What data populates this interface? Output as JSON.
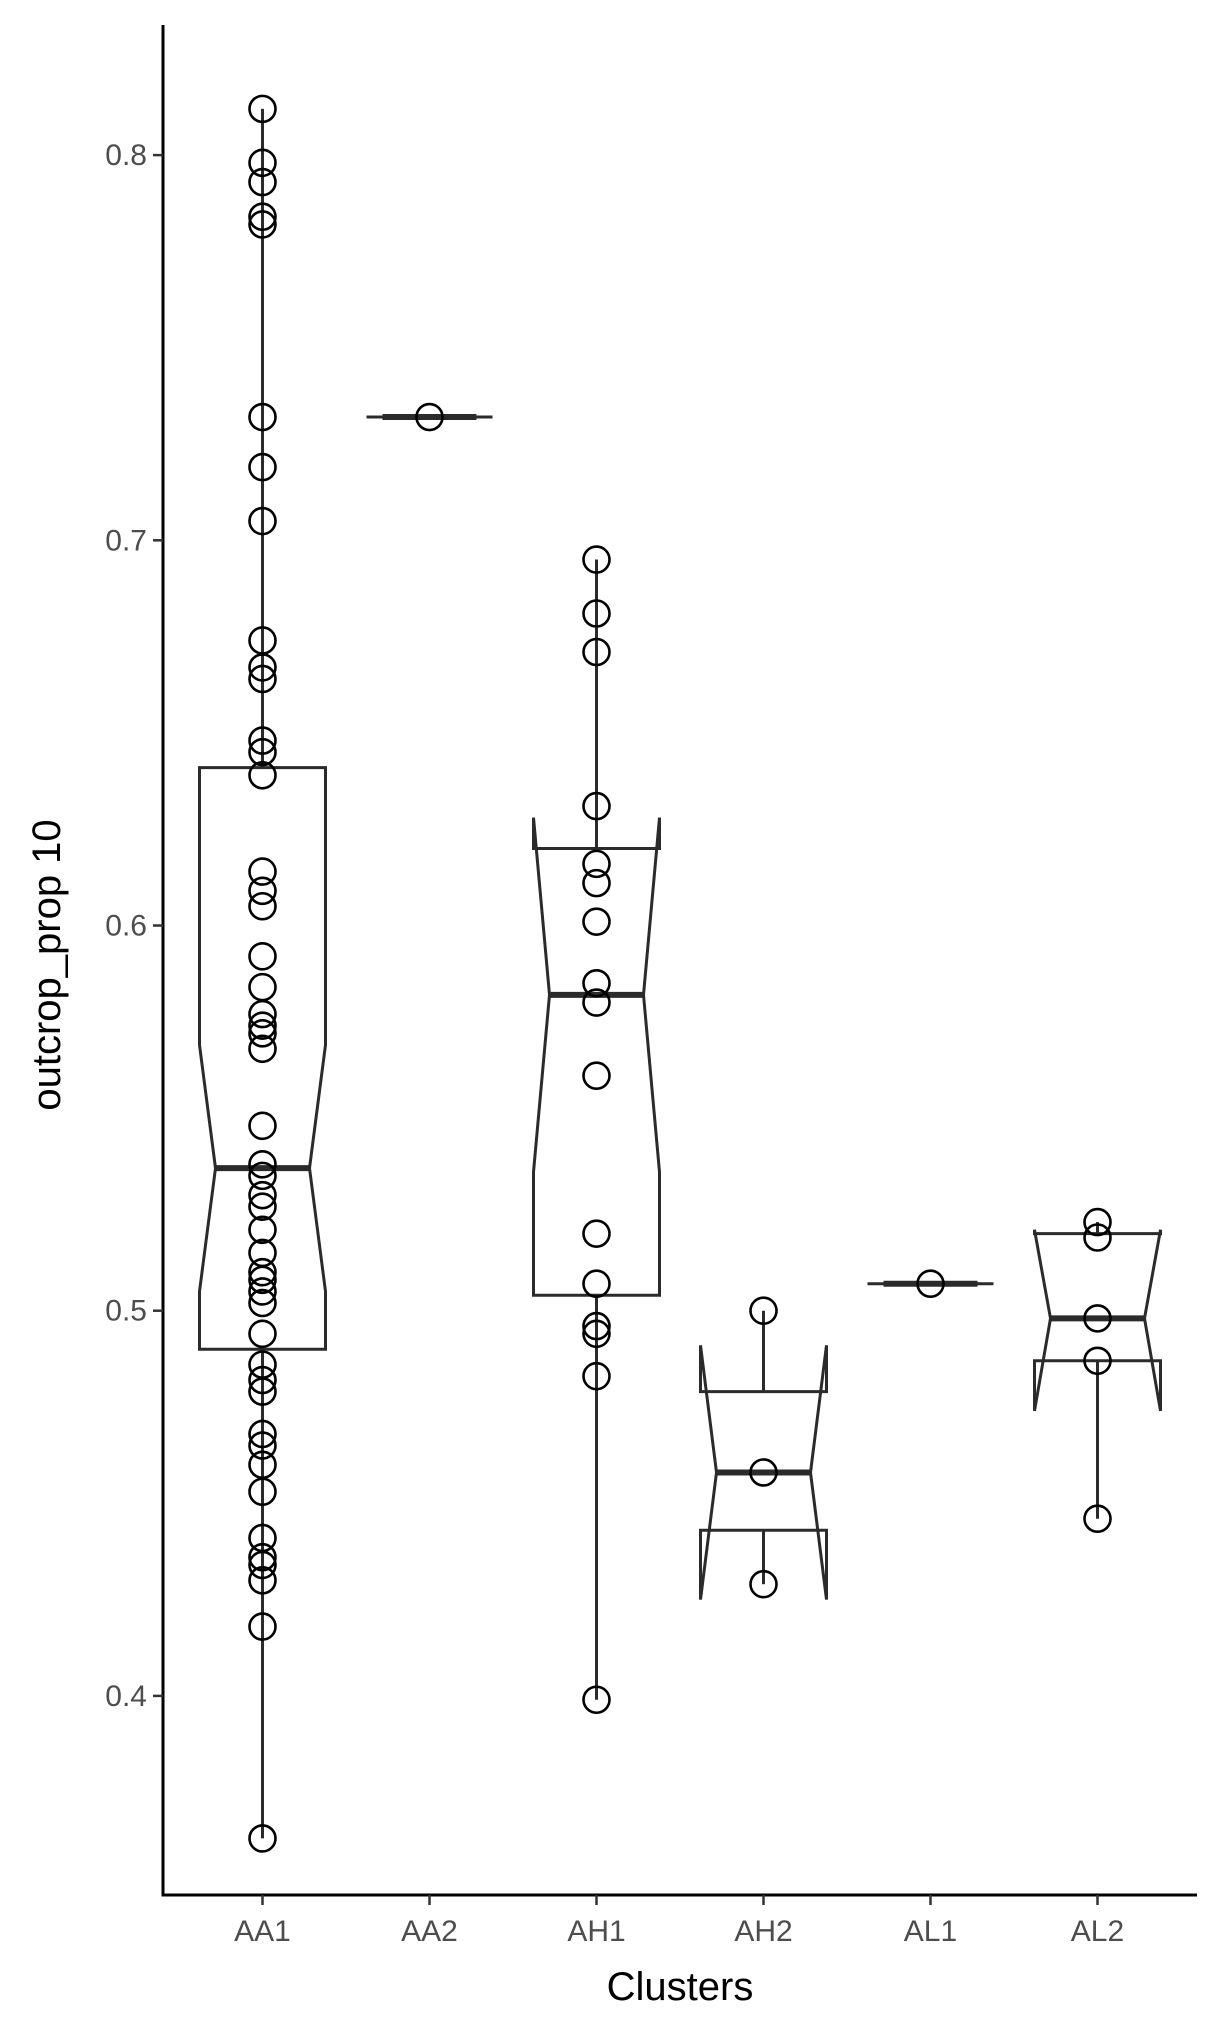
{
  "chart_data": {
    "type": "boxplot",
    "notched": true,
    "xlabel": "Clusters",
    "ylabel": "outcrop_prop 10",
    "ylim": [
      0.345,
      0.835
    ],
    "yticks": [
      0.4,
      0.5,
      0.6,
      0.7,
      0.8
    ],
    "ytick_labels": [
      "0.4",
      "0.5",
      "0.6",
      "0.7",
      "0.8"
    ],
    "categories": [
      "AA1",
      "AA2",
      "AH1",
      "AH2",
      "AL1",
      "AL2"
    ],
    "boxes": [
      {
        "category": "AA1",
        "q1": 0.49,
        "median": 0.537,
        "q3": 0.641,
        "whisker_low": 0.363,
        "whisker_high": 0.812,
        "notch_low": 0.505,
        "notch_high": 0.569
      },
      {
        "category": "AA2",
        "q1": 0.732,
        "median": 0.732,
        "q3": 0.732,
        "whisker_low": 0.732,
        "whisker_high": 0.732,
        "notch_low": 0.732,
        "notch_high": 0.732
      },
      {
        "category": "AH1",
        "q1": 0.504,
        "median": 0.582,
        "q3": 0.62,
        "whisker_low": 0.399,
        "whisker_high": 0.695,
        "notch_low": 0.536,
        "notch_high": 0.628
      },
      {
        "category": "AH2",
        "q1": 0.443,
        "median": 0.458,
        "q3": 0.479,
        "whisker_low": 0.429,
        "whisker_high": 0.5,
        "notch_low": 0.425,
        "notch_high": 0.491
      },
      {
        "category": "AL1",
        "q1": 0.507,
        "median": 0.507,
        "q3": 0.507,
        "whisker_low": 0.507,
        "whisker_high": 0.507,
        "notch_low": 0.507,
        "notch_high": 0.507
      },
      {
        "category": "AL2",
        "q1": 0.487,
        "median": 0.498,
        "q3": 0.52,
        "whisker_low": 0.446,
        "whisker_high": 0.523,
        "notch_low": 0.474,
        "notch_high": 0.521
      }
    ],
    "points": [
      {
        "category": "AA1",
        "values": [
          0.812,
          0.798,
          0.793,
          0.784,
          0.782,
          0.732,
          0.719,
          0.705,
          0.674,
          0.667,
          0.664,
          0.648,
          0.645,
          0.639,
          0.614,
          0.609,
          0.605,
          0.592,
          0.584,
          0.577,
          0.574,
          0.572,
          0.568,
          0.548,
          0.538,
          0.535,
          0.53,
          0.527,
          0.521,
          0.515,
          0.51,
          0.508,
          0.505,
          0.502,
          0.494,
          0.486,
          0.482,
          0.479,
          0.468,
          0.465,
          0.46,
          0.453,
          0.441,
          0.436,
          0.434,
          0.43,
          0.418,
          0.363
        ]
      },
      {
        "category": "AA2",
        "values": [
          0.732
        ]
      },
      {
        "category": "AH1",
        "values": [
          0.695,
          0.681,
          0.671,
          0.631,
          0.616,
          0.611,
          0.601,
          0.585,
          0.58,
          0.561,
          0.52,
          0.507,
          0.496,
          0.494,
          0.483,
          0.399
        ]
      },
      {
        "category": "AH2",
        "values": [
          0.5,
          0.458,
          0.429
        ]
      },
      {
        "category": "AL1",
        "values": [
          0.507
        ]
      },
      {
        "category": "AL2",
        "values": [
          0.523,
          0.519,
          0.498,
          0.487,
          0.446
        ]
      }
    ]
  }
}
